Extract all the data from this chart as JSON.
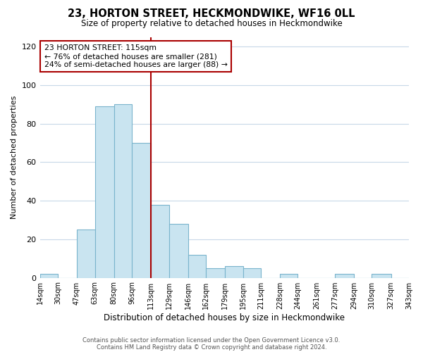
{
  "title": "23, HORTON STREET, HECKMONDWIKE, WF16 0LL",
  "subtitle": "Size of property relative to detached houses in Heckmondwike",
  "xlabel": "Distribution of detached houses by size in Heckmondwike",
  "ylabel": "Number of detached properties",
  "footer_line1": "Contains HM Land Registry data © Crown copyright and database right 2024.",
  "footer_line2": "Contains public sector information licensed under the Open Government Licence v3.0.",
  "bin_edges": [
    14,
    30,
    47,
    63,
    80,
    96,
    113,
    129,
    146,
    162,
    179,
    195,
    211,
    228,
    244,
    261,
    277,
    294,
    310,
    327,
    343
  ],
  "bin_labels": [
    "14sqm",
    "30sqm",
    "47sqm",
    "63sqm",
    "80sqm",
    "96sqm",
    "113sqm",
    "129sqm",
    "146sqm",
    "162sqm",
    "179sqm",
    "195sqm",
    "211sqm",
    "228sqm",
    "244sqm",
    "261sqm",
    "277sqm",
    "294sqm",
    "310sqm",
    "327sqm",
    "343sqm"
  ],
  "bar_heights": [
    2,
    0,
    25,
    89,
    90,
    70,
    38,
    28,
    12,
    5,
    6,
    5,
    0,
    2,
    0,
    0,
    2,
    0,
    2,
    0
  ],
  "bar_color": "#c9e4f0",
  "bar_edge_color": "#7ab4cc",
  "vline_x": 113,
  "vline_color": "#aa0000",
  "annotation_title": "23 HORTON STREET: 115sqm",
  "annotation_line1": "← 76% of detached houses are smaller (281)",
  "annotation_line2": "24% of semi-detached houses are larger (88) →",
  "annotation_box_color": "#ffffff",
  "annotation_box_edge_color": "#aa0000",
  "ylim": [
    0,
    125
  ],
  "yticks": [
    0,
    20,
    40,
    60,
    80,
    100,
    120
  ],
  "background_color": "#ffffff",
  "grid_color": "#c8d8e8"
}
